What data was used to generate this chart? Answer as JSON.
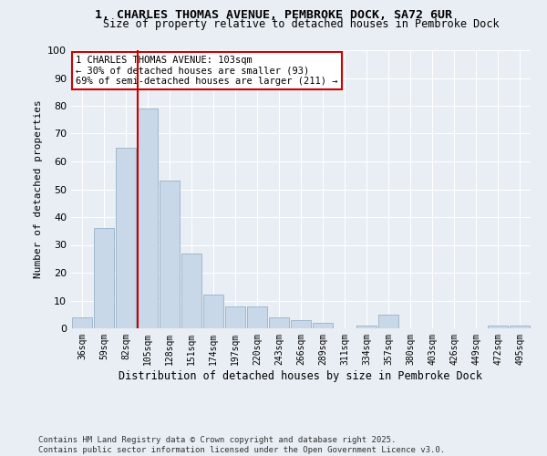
{
  "title": "1, CHARLES THOMAS AVENUE, PEMBROKE DOCK, SA72 6UR",
  "subtitle": "Size of property relative to detached houses in Pembroke Dock",
  "xlabel": "Distribution of detached houses by size in Pembroke Dock",
  "ylabel": "Number of detached properties",
  "footer_line1": "Contains HM Land Registry data © Crown copyright and database right 2025.",
  "footer_line2": "Contains public sector information licensed under the Open Government Licence v3.0.",
  "categories": [
    "36sqm",
    "59sqm",
    "82sqm",
    "105sqm",
    "128sqm",
    "151sqm",
    "174sqm",
    "197sqm",
    "220sqm",
    "243sqm",
    "266sqm",
    "289sqm",
    "311sqm",
    "334sqm",
    "357sqm",
    "380sqm",
    "403sqm",
    "426sqm",
    "449sqm",
    "472sqm",
    "495sqm"
  ],
  "values": [
    4,
    36,
    65,
    79,
    53,
    27,
    12,
    8,
    8,
    4,
    3,
    2,
    0,
    1,
    5,
    0,
    0,
    0,
    0,
    1,
    1
  ],
  "bar_color": "#c8d8e8",
  "bar_edge_color": "#a0b8cc",
  "property_bin_index": 3,
  "annotation_text": "1 CHARLES THOMAS AVENUE: 103sqm\n← 30% of detached houses are smaller (93)\n69% of semi-detached houses are larger (211) →",
  "annotation_box_color": "#ffffff",
  "annotation_box_edge": "#cc0000",
  "vline_color": "#cc0000",
  "ylim": [
    0,
    100
  ],
  "background_color": "#e8eef4",
  "plot_background": "#e8eef4",
  "grid_color": "#ffffff"
}
